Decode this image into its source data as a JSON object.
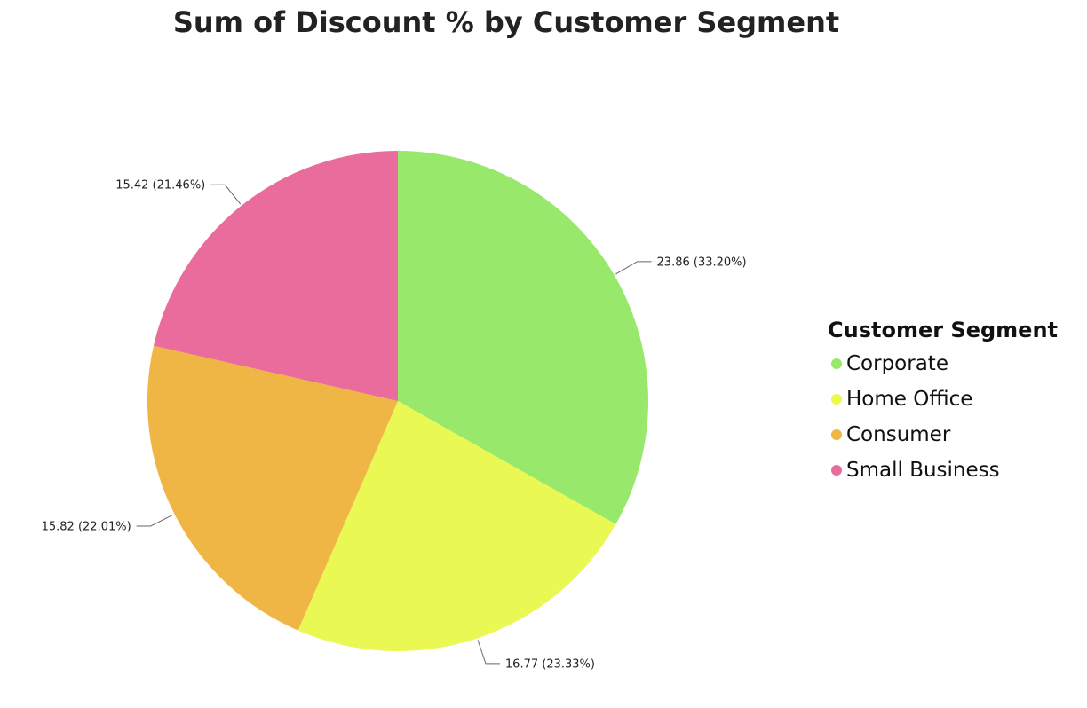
{
  "chart_data": {
    "type": "pie",
    "title": "Sum of Discount % by Customer Segment",
    "legend_title": "Customer Segment",
    "legend_position": "right",
    "slices": [
      {
        "name": "Corporate",
        "value": 23.86,
        "label": "23.86 (33.20%)",
        "color": "#97e86b"
      },
      {
        "name": "Home Office",
        "value": 16.77,
        "label": "16.77 (23.33%)",
        "color": "#e9f852"
      },
      {
        "name": "Consumer",
        "value": 15.82,
        "label": "15.82 (22.01%)",
        "color": "#efb545"
      },
      {
        "name": "Small Business",
        "value": 15.42,
        "label": "15.42 (21.46%)",
        "color": "#ea6c9c"
      }
    ]
  }
}
